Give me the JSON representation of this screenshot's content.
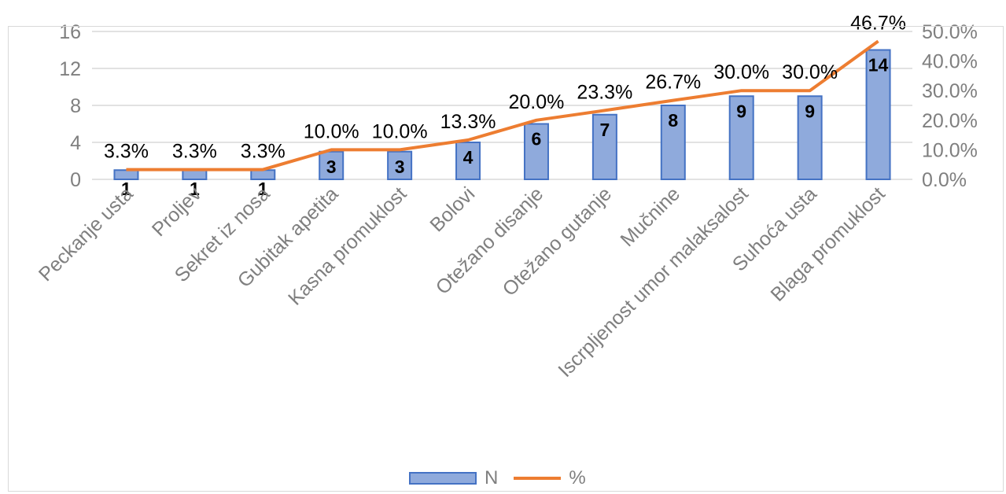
{
  "chart_data": {
    "type": "bar",
    "categories": [
      "Peckanje usta",
      "Proljev",
      "Sekret iz nosa",
      "Gubitak apetita",
      "Kasna promuklost",
      "Bolovi",
      "Otežano disanje",
      "Otežano gutanje",
      "Mučnine",
      "Iscrpljenost umor malaksalost",
      "Suhoća usta",
      "Blaga promuklost"
    ],
    "series": [
      {
        "name": "N",
        "type": "bar",
        "axis": "left",
        "values": [
          1,
          1,
          1,
          3,
          3,
          4,
          6,
          7,
          8,
          9,
          9,
          14
        ],
        "labels": [
          "1",
          "1",
          "1",
          "3",
          "3",
          "4",
          "6",
          "7",
          "8",
          "9",
          "9",
          "14"
        ]
      },
      {
        "name": "%",
        "type": "line",
        "axis": "right",
        "values": [
          3.3,
          3.3,
          3.3,
          10.0,
          10.0,
          13.3,
          20.0,
          23.3,
          26.7,
          30.0,
          30.0,
          46.7
        ],
        "labels": [
          "3.3%",
          "3.3%",
          "3.3%",
          "10.0%",
          "10.0%",
          "13.3%",
          "20.0%",
          "23.3%",
          "26.7%",
          "30.0%",
          "30.0%",
          "46.7%"
        ]
      }
    ],
    "y_left": {
      "ylim": [
        0,
        16
      ],
      "ticks": [
        "0",
        "4",
        "8",
        "12",
        "16"
      ]
    },
    "y_right": {
      "ylim": [
        0,
        50
      ],
      "ticks": [
        "0.0%",
        "10.0%",
        "20.0%",
        "30.0%",
        "40.0%",
        "50.0%"
      ]
    },
    "grid": true,
    "legend_position": "bottom",
    "colors": {
      "bar_fill": "#8faadc",
      "bar_stroke": "#4472c4",
      "line": "#ed7d31",
      "grid": "#d9d9d9",
      "axis_text": "#7f7f7f"
    }
  },
  "legend": {
    "bar_label": "N",
    "line_label": "%"
  }
}
